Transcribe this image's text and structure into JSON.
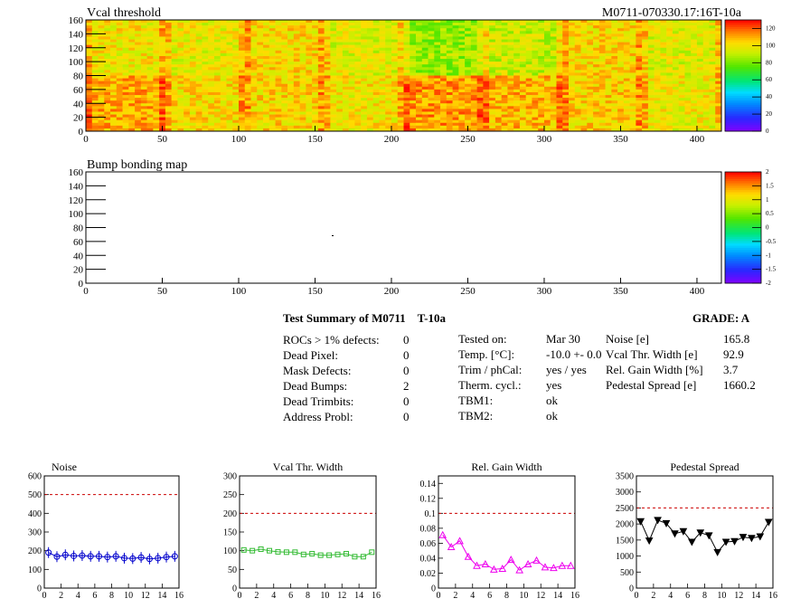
{
  "header": {
    "vcal_title": "Vcal threshold",
    "module_id": "M0711-070330.17:16T-10a",
    "bump_title": "Bump bonding map"
  },
  "heatmaps": {
    "x_ticks": [
      "0",
      "50",
      "100",
      "150",
      "200",
      "250",
      "300",
      "350",
      "400"
    ],
    "y_ticks": [
      "0",
      "20",
      "40",
      "60",
      "80",
      "100",
      "120",
      "140",
      "160"
    ],
    "vcal_palette_ticks": [
      "0",
      "20",
      "40",
      "60",
      "80",
      "100",
      "120"
    ],
    "bump_palette_ticks": [
      "-2",
      "-1.5",
      "-1",
      "-0.5",
      "0",
      "0.5",
      "1",
      "1.5",
      "2"
    ]
  },
  "summary": {
    "title": "Test Summary of M0711",
    "temp_label": "T-10a",
    "grade": "GRADE:  A",
    "defects": [
      {
        "label": "ROCs > 1% defects:",
        "value": "0"
      },
      {
        "label": "Dead Pixel:",
        "value": "0"
      },
      {
        "label": "Mask Defects:",
        "value": "0"
      },
      {
        "label": "Dead Bumps:",
        "value": "2"
      },
      {
        "label": "Dead Trimbits:",
        "value": "0"
      },
      {
        "label": "Address Probl:",
        "value": "0"
      }
    ],
    "conditions": [
      {
        "label": "Tested on:",
        "value": "Mar 30"
      },
      {
        "label": "Temp. [°C]:",
        "value": "-10.0 +- 0.0"
      },
      {
        "label": "Trim / phCal:",
        "value": "yes / yes"
      },
      {
        "label": "Therm. cycl.:",
        "value": "yes"
      },
      {
        "label": "TBM1:",
        "value": "ok"
      },
      {
        "label": "TBM2:",
        "value": "ok"
      }
    ],
    "results": [
      {
        "label": "Noise [e]",
        "value": "165.8"
      },
      {
        "label": "Vcal Thr. Width [e]",
        "value": "92.9"
      },
      {
        "label": "Rel. Gain Width [%]",
        "value": "3.7"
      },
      {
        "label": "Pedestal Spread [e]",
        "value": "1660.2"
      }
    ]
  },
  "colors": {
    "noise": "#0000cc",
    "vcal": "#33bb33",
    "gain": "#ee00ee",
    "pedestal": "#000000",
    "limit": "#cc0000"
  },
  "chart_data": [
    {
      "type": "heatmap",
      "title": "Vcal threshold",
      "xlim": [
        0,
        416
      ],
      "ylim": [
        0,
        160
      ],
      "zlim": [
        0,
        130
      ],
      "description_values": "per-ROC mean threshold, 8 columns x 2 rows of ROCs",
      "roc_means_top": [
        100,
        98,
        102,
        96,
        85,
        92,
        103,
        96
      ],
      "roc_means_bottom": [
        110,
        102,
        103,
        100,
        112,
        108,
        104,
        98
      ]
    },
    {
      "type": "heatmap",
      "title": "Bump bonding map",
      "xlim": [
        0,
        416
      ],
      "ylim": [
        0,
        160
      ],
      "zlim": [
        -2,
        2
      ]
    },
    {
      "type": "scatter",
      "title": "Noise",
      "xlim": [
        0,
        16
      ],
      "ylim": [
        0,
        600
      ],
      "xticks": [
        "0",
        "2",
        "4",
        "6",
        "8",
        "10",
        "12",
        "14",
        "16"
      ],
      "yticks": [
        "0",
        "100",
        "200",
        "300",
        "400",
        "500",
        "600"
      ],
      "limit": 500,
      "x": [
        0.5,
        1.5,
        2.5,
        3.5,
        4.5,
        5.5,
        6.5,
        7.5,
        8.5,
        9.5,
        10.5,
        11.5,
        12.5,
        13.5,
        14.5,
        15.5
      ],
      "values": [
        190,
        168,
        178,
        172,
        174,
        170,
        170,
        166,
        170,
        160,
        158,
        164,
        156,
        160,
        166,
        170
      ]
    },
    {
      "type": "scatter",
      "title": "Vcal Thr. Width",
      "xlim": [
        0,
        16
      ],
      "ylim": [
        0,
        300
      ],
      "xticks": [
        "0",
        "2",
        "4",
        "6",
        "8",
        "10",
        "12",
        "14",
        "16"
      ],
      "yticks": [
        "0",
        "50",
        "100",
        "150",
        "200",
        "250",
        "300"
      ],
      "limit": 200,
      "x": [
        0.5,
        1.5,
        2.5,
        3.5,
        4.5,
        5.5,
        6.5,
        7.5,
        8.5,
        9.5,
        10.5,
        11.5,
        12.5,
        13.5,
        14.5,
        15.5
      ],
      "values": [
        102,
        100,
        104,
        100,
        97,
        96,
        96,
        90,
        92,
        88,
        88,
        90,
        92,
        84,
        84,
        96
      ]
    },
    {
      "type": "scatter",
      "title": "Rel. Gain Width",
      "xlim": [
        0,
        16
      ],
      "ylim": [
        0,
        0.15
      ],
      "xticks": [
        "0",
        "2",
        "4",
        "6",
        "8",
        "10",
        "12",
        "14",
        "16"
      ],
      "yticks": [
        "0",
        "0.02",
        "0.04",
        "0.06",
        "0.08",
        "0.1",
        "0.12",
        "0.14"
      ],
      "limit": 0.1,
      "x": [
        0.5,
        1.5,
        2.5,
        3.5,
        4.5,
        5.5,
        6.5,
        7.5,
        8.5,
        9.5,
        10.5,
        11.5,
        12.5,
        13.5,
        14.5,
        15.5
      ],
      "values": [
        0.071,
        0.055,
        0.063,
        0.042,
        0.03,
        0.032,
        0.025,
        0.026,
        0.038,
        0.024,
        0.032,
        0.037,
        0.028,
        0.027,
        0.03,
        0.03
      ]
    },
    {
      "type": "scatter",
      "title": "Pedestal Spread",
      "xlim": [
        0,
        16
      ],
      "ylim": [
        0,
        3500
      ],
      "xticks": [
        "0",
        "2",
        "4",
        "6",
        "8",
        "10",
        "12",
        "14",
        "16"
      ],
      "yticks": [
        "0",
        "500",
        "1000",
        "1500",
        "2000",
        "2500",
        "3000",
        "3500"
      ],
      "limit": 2500,
      "x": [
        0.5,
        1.5,
        2.5,
        3.5,
        4.5,
        5.5,
        6.5,
        7.5,
        8.5,
        9.5,
        10.5,
        11.5,
        12.5,
        13.5,
        14.5,
        15.5
      ],
      "values": [
        2080,
        1480,
        2120,
        2020,
        1700,
        1770,
        1440,
        1730,
        1640,
        1120,
        1440,
        1460,
        1590,
        1560,
        1610,
        2060
      ]
    }
  ]
}
